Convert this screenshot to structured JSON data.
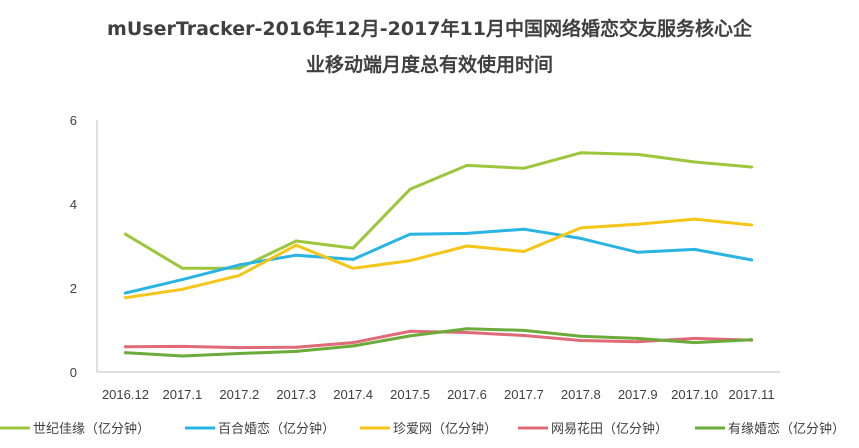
{
  "title_line1": "mUserTracker-2016年12月-2017年11月中国网络婚恋交友服务核心企",
  "title_line2": "业移动端月度总有效使用时间",
  "chart_data": {
    "type": "line",
    "title": "mUserTracker-2016年12月-2017年11月中国网络婚恋交友服务核心企业移动端月度总有效使用时间",
    "xlabel": "",
    "ylabel": "",
    "categories": [
      "2016.12",
      "2017.1",
      "2017.2",
      "2017.3",
      "2017.4",
      "2017.5",
      "2017.6",
      "2017.7",
      "2017.8",
      "2017.9",
      "2017.10",
      "2017.11"
    ],
    "ylim": [
      0,
      6
    ],
    "yticks": [
      0,
      2,
      4,
      6
    ],
    "grid": false,
    "legend_position": "bottom",
    "series": [
      {
        "name": "世纪佳缘（亿分钟）",
        "color": "#9dc63c",
        "values": [
          3.28,
          2.47,
          2.47,
          3.12,
          2.95,
          4.35,
          4.92,
          4.85,
          5.22,
          5.18,
          5.0,
          4.88
        ]
      },
      {
        "name": "百合婚恋（亿分钟）",
        "color": "#2ab4e4",
        "values": [
          1.88,
          2.2,
          2.55,
          2.78,
          2.68,
          3.28,
          3.3,
          3.4,
          3.18,
          2.85,
          2.92,
          2.67
        ]
      },
      {
        "name": "珍爱网（亿分钟）",
        "color": "#f5c518",
        "values": [
          1.77,
          1.97,
          2.3,
          3.02,
          2.47,
          2.65,
          3.0,
          2.87,
          3.43,
          3.52,
          3.64,
          3.5
        ]
      },
      {
        "name": "网易花田（亿分钟）",
        "color": "#e06a78",
        "values": [
          0.6,
          0.61,
          0.58,
          0.59,
          0.7,
          0.97,
          0.94,
          0.87,
          0.75,
          0.72,
          0.8,
          0.76
        ]
      },
      {
        "name": "有缘婚恋（亿分钟）",
        "color": "#6aab3a",
        "values": [
          0.46,
          0.38,
          0.44,
          0.49,
          0.62,
          0.86,
          1.03,
          0.99,
          0.85,
          0.8,
          0.7,
          0.77
        ]
      }
    ]
  }
}
